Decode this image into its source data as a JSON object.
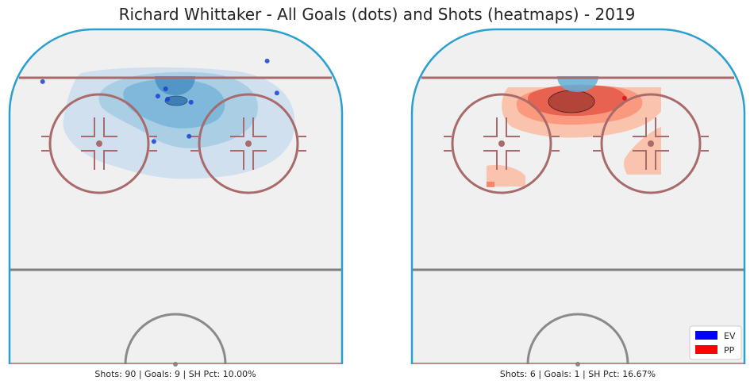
{
  "title": "Richard Whittaker - All Goals (dots) and Shots (heatmaps) - 2019",
  "colors": {
    "ice": "#f0f0f0",
    "boards": "#2a9fd0",
    "red_line": "#a86a6a",
    "blue_line": "#7f7f7f",
    "center_circle": "#8a8a8a",
    "ev": "#0000ff",
    "pp": "#ff0000"
  },
  "chart_data": [
    {
      "type": "scatter",
      "panel": "left",
      "situation": "EV",
      "caption": "Shots: 90 | Goals: 9 | SH Pct: 10.00%",
      "shots": 90,
      "goals": 9,
      "sh_pct": "10.00%",
      "heatmap_colormap": "Blues",
      "goal_locations": [
        {
          "x": -68,
          "y": 7
        },
        {
          "x": 47,
          "y": 27
        },
        {
          "x": -5,
          "y": 0
        },
        {
          "x": -9,
          "y": -7
        },
        {
          "x": -4,
          "y": -10
        },
        {
          "x": 8,
          "y": -13
        },
        {
          "x": 52,
          "y": -4
        },
        {
          "x": 7,
          "y": -46
        },
        {
          "x": -11,
          "y": -51
        }
      ]
    },
    {
      "type": "scatter",
      "panel": "right",
      "situation": "PP",
      "caption": "Shots: 6 | Goals: 1 | SH Pct: 16.67%",
      "shots": 6,
      "goals": 1,
      "sh_pct": "16.67%",
      "heatmap_colormap": "Reds",
      "goal_locations": [
        {
          "x": 24,
          "y": -9
        }
      ]
    }
  ],
  "legend": {
    "position": "lower-right",
    "entries": [
      {
        "label": "EV",
        "color": "#0000ff"
      },
      {
        "label": "PP",
        "color": "#ff0000"
      }
    ]
  }
}
